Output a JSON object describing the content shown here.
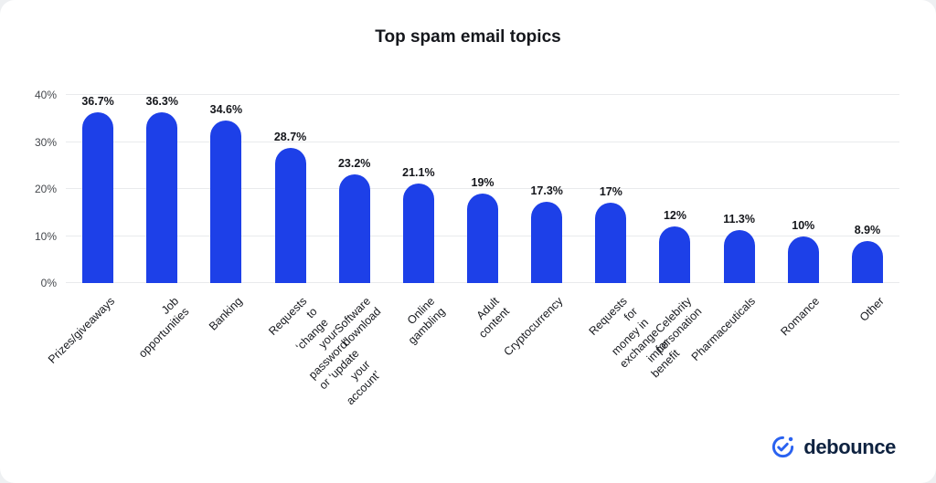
{
  "title": "Top spam email topics",
  "chart_data": {
    "type": "bar",
    "title": "Top spam email topics",
    "categories": [
      "Prizes/giveaways",
      "Job opportunities",
      "Banking",
      "Requests to ‘change your\npassword’ or ‘update your account’",
      "Software download",
      "Online gambling",
      "Adult content",
      "Cryptocurrency",
      "Requests for money in\nexchange for benefit",
      "Celebrity impersonation",
      "Pharmaceuticals",
      "Romance",
      "Other"
    ],
    "values": [
      36.7,
      36.3,
      34.6,
      28.7,
      23.2,
      21.1,
      19,
      17.3,
      17,
      12,
      11.3,
      10,
      8.9
    ],
    "value_labels": [
      "36.7%",
      "36.3%",
      "34.6%",
      "28.7%",
      "23.2%",
      "21.1%",
      "19%",
      "17.3%",
      "17%",
      "12%",
      "11.3%",
      "10%",
      "8.9%"
    ],
    "xlabel": "",
    "ylabel": "",
    "ylim": [
      0,
      40
    ],
    "yticks": [
      0,
      10,
      20,
      30,
      40
    ],
    "ytick_labels": [
      "0%",
      "10%",
      "20%",
      "30%",
      "40%"
    ],
    "grid": true,
    "legend": false,
    "bar_color": "#1d40e8"
  },
  "logo": {
    "text": "debounce",
    "text_color": "#0e2240",
    "icon_color": "#2a62f0"
  }
}
